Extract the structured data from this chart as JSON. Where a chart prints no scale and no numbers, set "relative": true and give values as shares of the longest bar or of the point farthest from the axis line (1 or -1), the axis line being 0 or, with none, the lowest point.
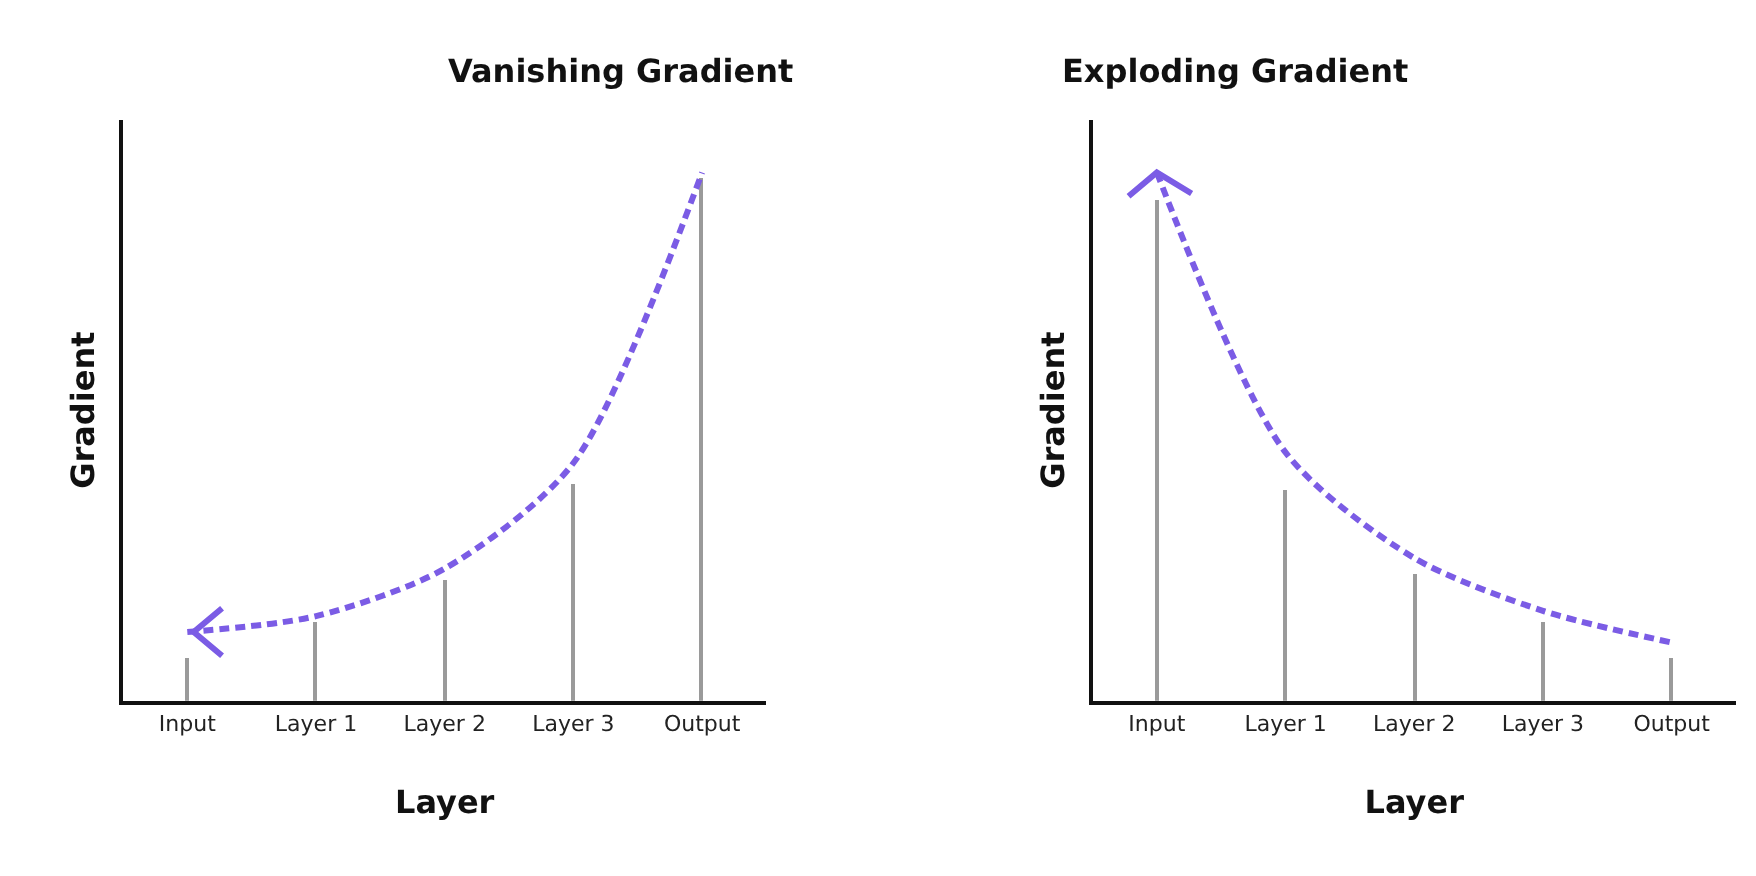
{
  "chart_data": [
    {
      "type": "bar",
      "title": "Vanishing Gradient",
      "xlabel": "Layer",
      "ylabel": "Gradient",
      "relative": true,
      "categories": [
        "Input",
        "Layer 1",
        "Layer 2",
        "Layer 3",
        "Output"
      ],
      "series": [
        {
          "color": "#9a9a9a",
          "values": [
            0.08,
            0.15,
            0.23,
            0.41,
            0.99
          ]
        },
        {
          "type": "line",
          "color": "#7b5ce5",
          "line_style": "dashed",
          "values": [
            0.13,
            0.16,
            0.25,
            0.45,
            1.0
          ]
        }
      ]
    },
    {
      "type": "bar",
      "title": "Exploding Gradient",
      "xlabel": "Layer",
      "ylabel": "Gradient",
      "relative": true,
      "categories": [
        "Input",
        "Layer 1",
        "Layer 2",
        "Layer 3",
        "Output"
      ],
      "series": [
        {
          "color": "#9a9a9a",
          "values": [
            0.95,
            0.4,
            0.24,
            0.15,
            0.08
          ]
        },
        {
          "type": "line",
          "color": "#7b5ce5",
          "line_style": "dashed",
          "values": [
            1.0,
            0.47,
            0.27,
            0.17,
            0.11
          ]
        }
      ]
    }
  ]
}
